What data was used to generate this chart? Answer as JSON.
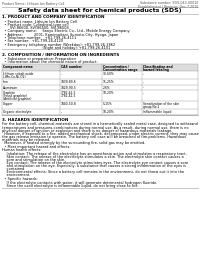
{
  "doc_title": "Safety data sheet for chemical products (SDS)",
  "header_left": "Product Name: Lithium Ion Battery Cell",
  "header_right_1": "Substance number: SDS-043-00010",
  "header_right_2": "Establishment / Revision: Dec.7.2016",
  "section1_title": "1. PRODUCT AND COMPANY IDENTIFICATION",
  "section1_lines": [
    "  • Product name: Lithium Ion Battery Cell",
    "  • Product code: Cylindrical-type cell",
    "       SVI-86600, SVI-86500, SVI-86504",
    "  • Company name:     Sanyo Electric Co., Ltd., Mobile Energy Company",
    "  • Address:          2001, Kamimaitani, Sumoto-City, Hyogo, Japan",
    "  • Telephone number:   +81-799-26-4111",
    "  • Fax number:  +81-799-26-4120",
    "  • Emergency telephone number (Weekday): +81-799-26-3862",
    "                                    (Night and holiday): +81-799-26-4101"
  ],
  "section2_title": "2. COMPOSITION / INFORMATION ON INGREDIENTS",
  "section2_intro": "  • Substance or preparation: Preparation",
  "section2_sub": "  • Information about the chemical nature of product:",
  "table_col_labels": [
    "Component name",
    "CAS number",
    "Concentration /\nConcentration range",
    "Classification and\nhazard labeling"
  ],
  "table_rows": [
    [
      "Lithium cobalt oxide\n(LiMn-Co-Ni-O2)",
      "-",
      "30-60%",
      "-"
    ],
    [
      "Iron",
      "7439-89-6",
      "15-25%",
      "-"
    ],
    [
      "Aluminum",
      "7429-90-5",
      "2-6%",
      "-"
    ],
    [
      "Graphite\n(Fossil graphite)\n(Artificial graphite)",
      "7782-42-5\n7782-42-5",
      "10-20%",
      "-"
    ],
    [
      "Copper",
      "7440-50-8",
      "5-15%",
      "Sensitization of the skin\ngroup No.2"
    ],
    [
      "Organic electrolyte",
      "-",
      "10-20%",
      "Inflammable liquid"
    ]
  ],
  "section3_title": "3. HAZARDS IDENTIFICATION",
  "section3_paras": [
    "For the battery cell, chemical materials are stored in a hermetically sealed metal case, designed to withstand",
    "temperatures and pressures-combinations during normal use. As a result, during normal use, there is no",
    "physical danger of ignition or explosion and there is no danger of hazardous materials leakage.",
    "  However, if exposed to a fire, added mechanical shock, decomposed, under electric current, they may cause",
    "the gas release emission to operate. The battery cell case will be breached of fire-problems. Hazardous",
    "materials may be released.",
    "  Moreover, if heated strongly by the surrounding fire, solid gas may be emitted."
  ],
  "section3_sub1": "  • Most important hazard and effects:",
  "section3_sub1_lines": [
    "Human health effects:",
    "    Inhalation: The release of the electrolyte has an anesthesia action and stimulates a respiratory tract.",
    "    Skin contact: The release of the electrolyte stimulates a skin. The electrolyte skin contact causes a",
    "    sore and stimulation on the skin.",
    "    Eye contact: The release of the electrolyte stimulates eyes. The electrolyte eye contact causes a sore",
    "    and stimulation on the eye. Especially, a substance that causes a strong inflammation of the eyes is",
    "    contained.",
    "    Environmental effects: Since a battery cell remains in the environment, do not throw out it into the",
    "    environment."
  ],
  "section3_sub2": "  • Specific hazards:",
  "section3_sub2_lines": [
    "    If the electrolyte contacts with water, it will generate detrimental hydrogen fluoride.",
    "    Since the used electrolyte is inflammable liquid, do not bring close to fire."
  ],
  "bg_color": "#ffffff",
  "gray": "#666666",
  "light_gray": "#cccccc"
}
